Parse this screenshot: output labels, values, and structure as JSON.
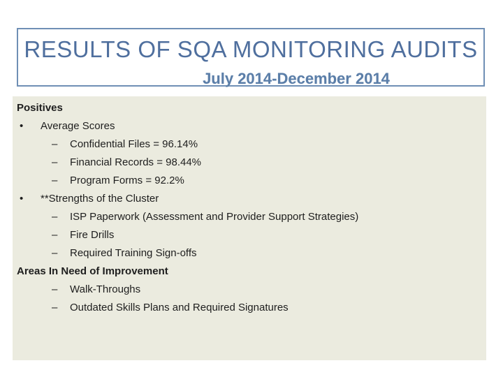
{
  "header": {
    "title": "RESULTS OF SQA MONITORING AUDITS",
    "subtitle": "July 2014-December 2014"
  },
  "body": {
    "positives_heading": "Positives",
    "bullet_char": "•",
    "dash_char": "–",
    "average_scores": {
      "label": "Average Scores",
      "items": [
        "Confidential Files = 96.14%",
        "Financial Records = 98.44%",
        "Program Forms = 92.2%"
      ]
    },
    "strengths": {
      "label": "**Strengths of the Cluster",
      "items": [
        "ISP Paperwork (Assessment and Provider Support Strategies)",
        "Fire Drills",
        "Required Training Sign-offs"
      ]
    },
    "improvement": {
      "heading": "Areas In Need of Improvement",
      "items": [
        "Walk-Throughs",
        "Outdated Skills Plans and Required Signatures"
      ]
    }
  }
}
